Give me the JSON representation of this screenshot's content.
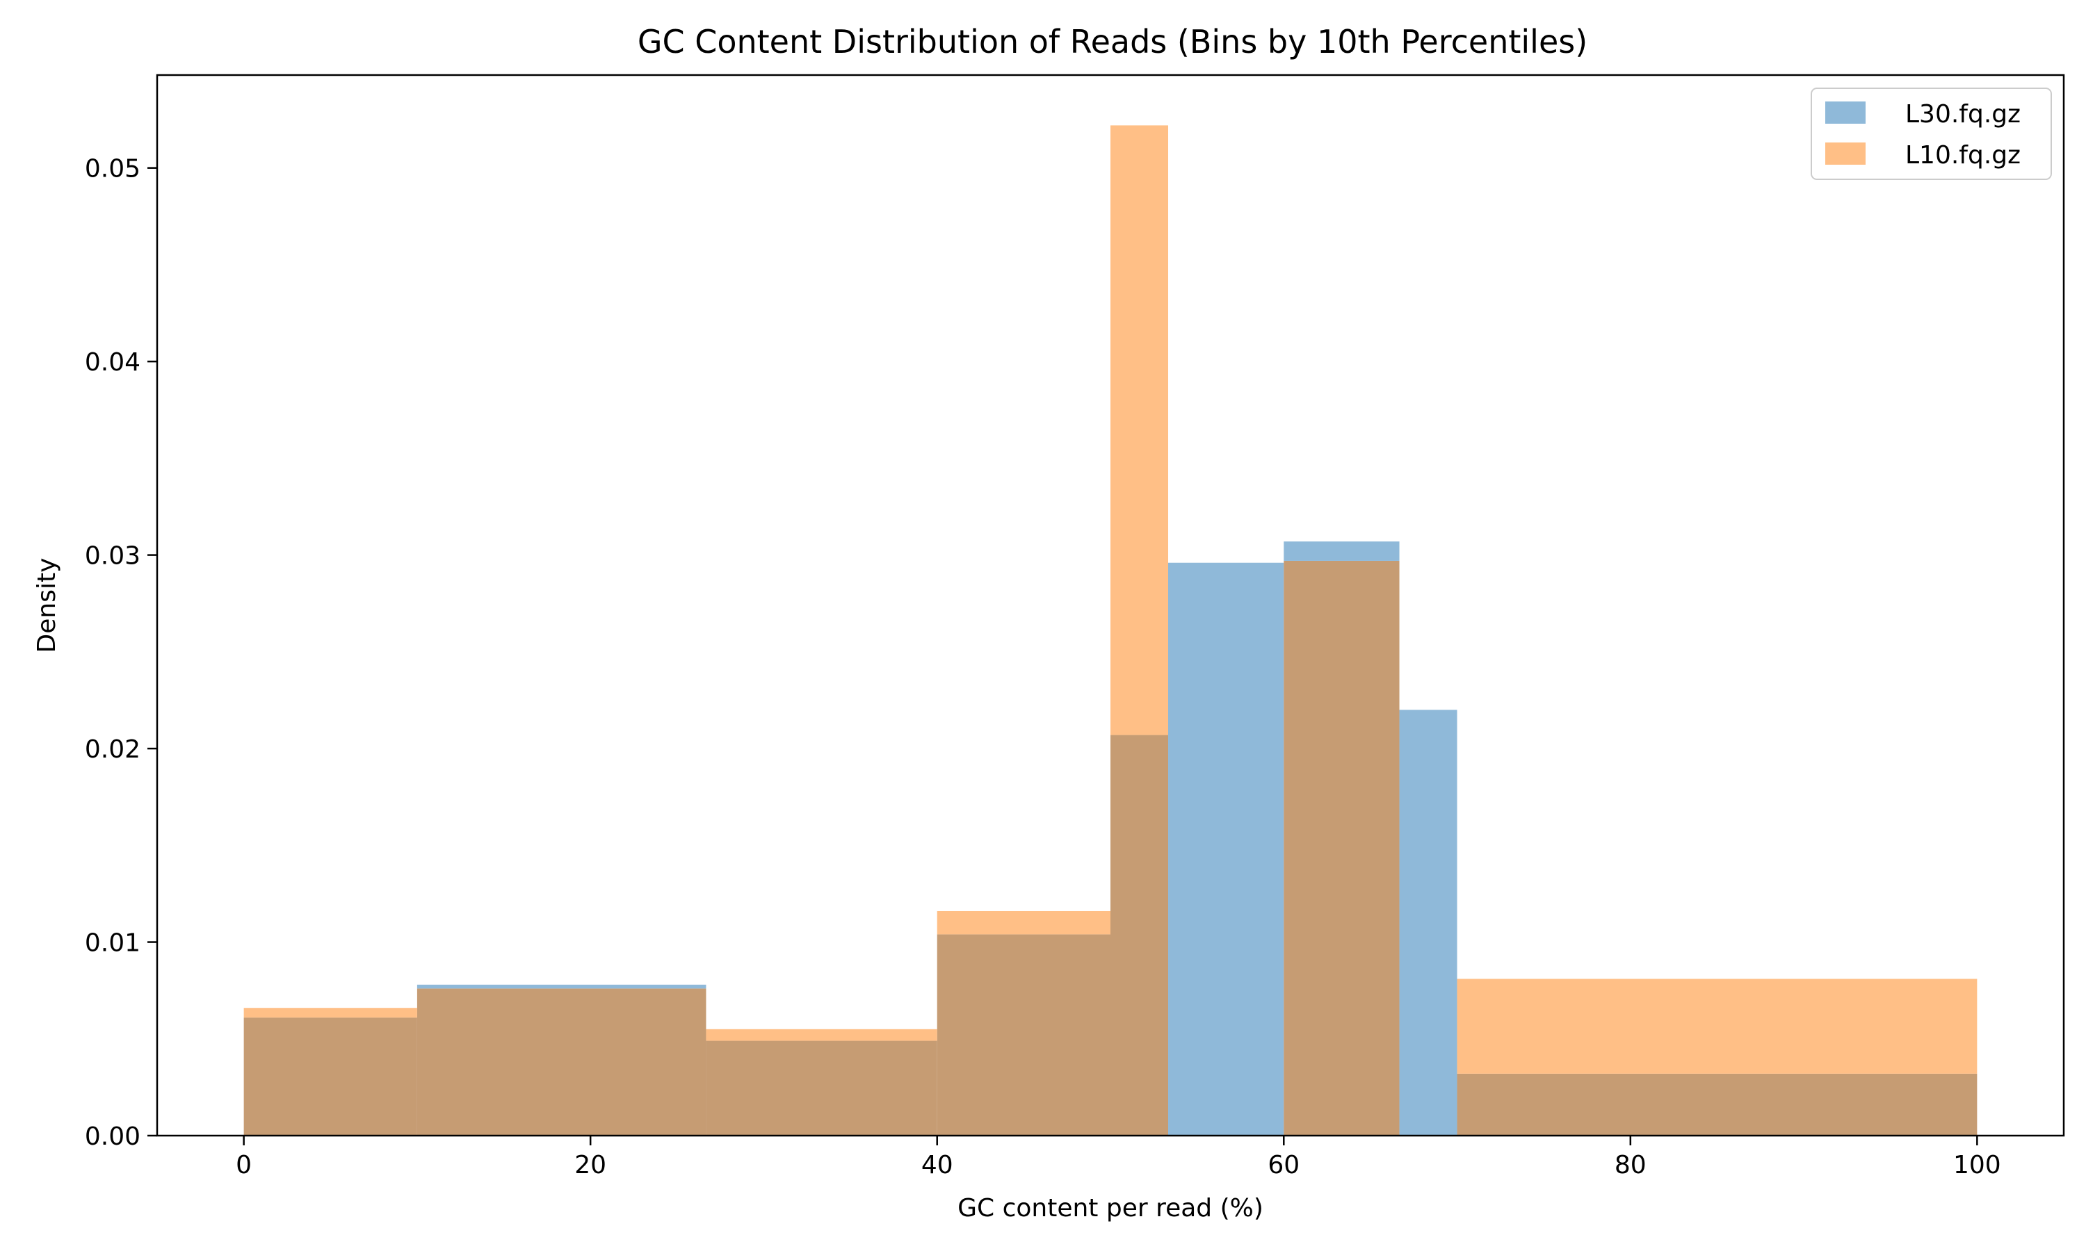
{
  "chart_data": {
    "type": "bar",
    "title": "GC Content Distribution of Reads (Bins by 10th Percentiles)",
    "xlabel": "GC content per read (%)",
    "ylabel": "Density",
    "xlim": [
      -5,
      105
    ],
    "ylim": [
      0,
      0.0548
    ],
    "xticks": [
      0,
      20,
      40,
      60,
      80,
      100
    ],
    "xtick_labels": [
      "0",
      "20",
      "40",
      "60",
      "80",
      "100"
    ],
    "yticks": [
      0,
      0.01,
      0.02,
      0.03,
      0.04,
      0.05
    ],
    "ytick_labels": [
      "0.00",
      "0.01",
      "0.02",
      "0.03",
      "0.04",
      "0.05"
    ],
    "grid": false,
    "legend_position": "top-right",
    "overlap_color": "#c69c73",
    "series": [
      {
        "name": "L30.fq.gz",
        "color": "#8fb9d9",
        "bins": [
          {
            "x0": 0,
            "x1": 10,
            "value": 0.0061
          },
          {
            "x0": 10,
            "x1": 26.67,
            "value": 0.0078
          },
          {
            "x0": 26.67,
            "x1": 40,
            "value": 0.0049
          },
          {
            "x0": 40,
            "x1": 50,
            "value": 0.0104
          },
          {
            "x0": 50,
            "x1": 53.33,
            "value": 0.0207
          },
          {
            "x0": 53.33,
            "x1": 60,
            "value": 0.0296
          },
          {
            "x0": 60,
            "x1": 66.67,
            "value": 0.0307
          },
          {
            "x0": 66.67,
            "x1": 70,
            "value": 0.022
          },
          {
            "x0": 70,
            "x1": 100,
            "value": 0.0032
          }
        ]
      },
      {
        "name": "L10.fq.gz",
        "color": "#ffbf86",
        "bins": [
          {
            "x0": 0,
            "x1": 10,
            "value": 0.0066
          },
          {
            "x0": 10,
            "x1": 26.67,
            "value": 0.0076
          },
          {
            "x0": 26.67,
            "x1": 40,
            "value": 0.0055
          },
          {
            "x0": 40,
            "x1": 50,
            "value": 0.0116
          },
          {
            "x0": 50,
            "x1": 53.33,
            "value": 0.0522
          },
          {
            "x0": 60,
            "x1": 66.67,
            "value": 0.0297
          },
          {
            "x0": 70,
            "x1": 100,
            "value": 0.0081
          }
        ]
      }
    ]
  }
}
